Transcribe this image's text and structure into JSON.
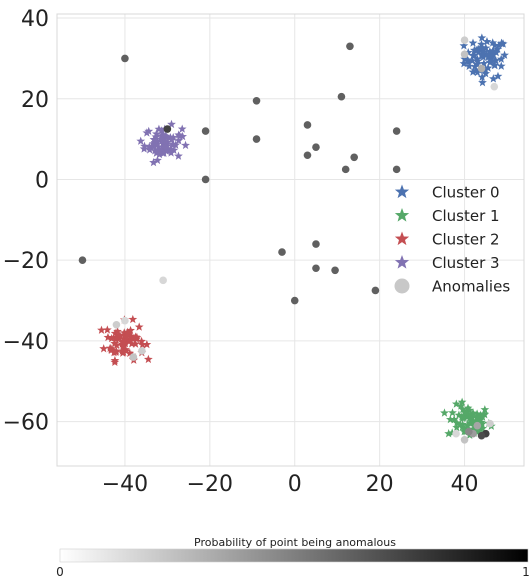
{
  "chart_data": {
    "type": "scatter",
    "title": "",
    "xlabel": "",
    "ylabel": "",
    "xlim": [
      -56,
      54
    ],
    "ylim": [
      -71,
      41
    ],
    "xticks": [
      -40,
      -20,
      0,
      20,
      40
    ],
    "yticks": [
      40,
      20,
      0,
      -20,
      -40,
      -60
    ],
    "xtick_labels": [
      "−40",
      "−20",
      "0",
      "20",
      "40"
    ],
    "ytick_labels": [
      "40",
      "20",
      "0",
      "−20",
      "−40",
      "−60"
    ],
    "grid": true,
    "legend": {
      "placement": "right",
      "entries": [
        {
          "label": "Cluster 0",
          "color": "#4c72b0",
          "marker": "star"
        },
        {
          "label": "Cluster 1",
          "color": "#55a868",
          "marker": "star"
        },
        {
          "label": "Cluster 2",
          "color": "#c44e52",
          "marker": "star"
        },
        {
          "label": "Cluster 3",
          "color": "#8172b2",
          "marker": "star"
        },
        {
          "label": "Anomalies",
          "color": "#c8c8c8",
          "marker": "circle"
        }
      ]
    },
    "clusters": [
      {
        "label": "Cluster 0",
        "color": "#4c72b0",
        "center": [
          45,
          30
        ],
        "spread": [
          2.5,
          2.5
        ],
        "count": 70
      },
      {
        "label": "Cluster 1",
        "color": "#55a868",
        "center": [
          41,
          -60
        ],
        "spread": [
          2.5,
          2.0
        ],
        "count": 70
      },
      {
        "label": "Cluster 2",
        "color": "#c44e52",
        "center": [
          -40,
          -40
        ],
        "spread": [
          2.3,
          2.3
        ],
        "count": 70
      },
      {
        "label": "Cluster 3",
        "color": "#8172b2",
        "center": [
          -31,
          9
        ],
        "spread": [
          2.2,
          2.0
        ],
        "count": 70
      }
    ],
    "anomalies": [
      {
        "x": -40,
        "y": 30,
        "p": 0.8
      },
      {
        "x": -50,
        "y": -20,
        "p": 0.8
      },
      {
        "x": -31,
        "y": -25,
        "p": 0.2
      },
      {
        "x": -30,
        "y": 12.5,
        "p": 0.95
      },
      {
        "x": -21,
        "y": 12,
        "p": 0.8
      },
      {
        "x": -21,
        "y": 0,
        "p": 0.8
      },
      {
        "x": -9,
        "y": 19.5,
        "p": 0.8
      },
      {
        "x": -9,
        "y": 10,
        "p": 0.8
      },
      {
        "x": -3,
        "y": -18,
        "p": 0.8
      },
      {
        "x": 0,
        "y": -30,
        "p": 0.8
      },
      {
        "x": 3,
        "y": 13.5,
        "p": 0.8
      },
      {
        "x": 3,
        "y": 6,
        "p": 0.8
      },
      {
        "x": 5,
        "y": 8,
        "p": 0.8
      },
      {
        "x": 5,
        "y": -16,
        "p": 0.8
      },
      {
        "x": 5,
        "y": -22,
        "p": 0.8
      },
      {
        "x": 9.5,
        "y": -22.5,
        "p": 0.8
      },
      {
        "x": 11,
        "y": 20.5,
        "p": 0.8
      },
      {
        "x": 12,
        "y": 2.5,
        "p": 0.8
      },
      {
        "x": 13,
        "y": 33,
        "p": 0.8
      },
      {
        "x": 14,
        "y": 5.5,
        "p": 0.8
      },
      {
        "x": 19,
        "y": -27.5,
        "p": 0.8
      },
      {
        "x": 24,
        "y": 12,
        "p": 0.8
      },
      {
        "x": 24,
        "y": 2.5,
        "p": 0.8
      },
      {
        "x": 40,
        "y": 34.5,
        "p": 0.25
      },
      {
        "x": 40,
        "y": 31,
        "p": 0.3
      },
      {
        "x": 47,
        "y": 23,
        "p": 0.2
      },
      {
        "x": 44,
        "y": 27.5,
        "p": 0.4
      },
      {
        "x": -42,
        "y": -36,
        "p": 0.25
      },
      {
        "x": -40,
        "y": -35,
        "p": 0.2
      },
      {
        "x": -36,
        "y": -42.5,
        "p": 0.25
      },
      {
        "x": -38,
        "y": -44,
        "p": 0.3
      },
      {
        "x": 45,
        "y": -63,
        "p": 0.95
      },
      {
        "x": 44,
        "y": -63.5,
        "p": 0.9
      },
      {
        "x": 42,
        "y": -63,
        "p": 0.5
      },
      {
        "x": 40,
        "y": -64.5,
        "p": 0.3
      },
      {
        "x": 43,
        "y": -61,
        "p": 0.45
      },
      {
        "x": 46,
        "y": -60.5,
        "p": 0.25
      },
      {
        "x": 38,
        "y": -63,
        "p": 0.2
      },
      {
        "x": 41,
        "y": -62.5,
        "p": 0.6
      }
    ],
    "colorbar": {
      "title": "Probability of point being anomalous",
      "min_label": "0",
      "max_label": "1",
      "color_low": "#ffffff",
      "color_high": "#000000"
    }
  }
}
